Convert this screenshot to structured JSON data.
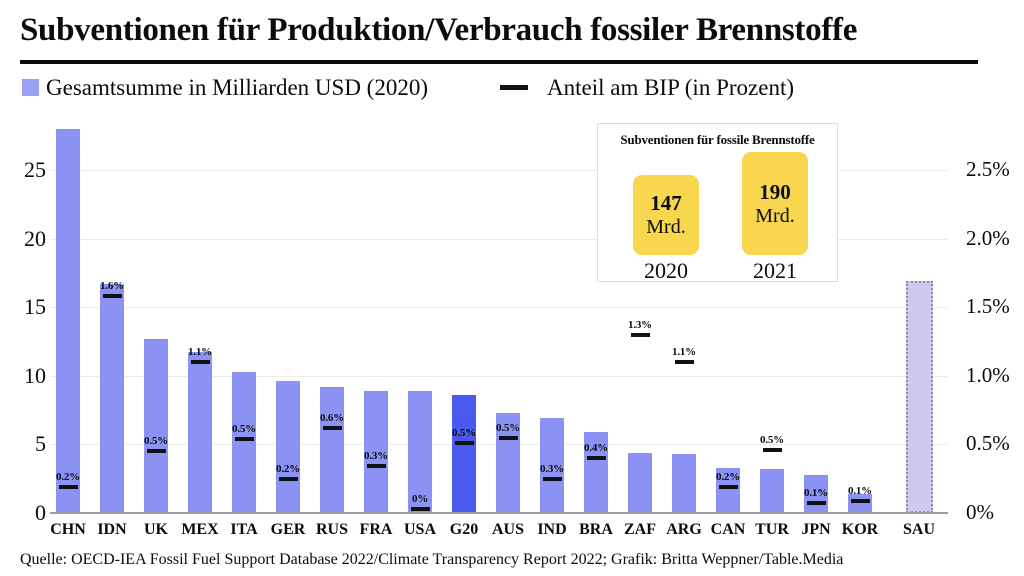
{
  "header": {
    "title": "Subventionen für Produktion/Verbrauch fossiler Brennstoffe"
  },
  "legend": {
    "total": {
      "label": "Gesamtsumme in Milliarden USD (2020)",
      "swatch": "blue-square"
    },
    "share": {
      "label": "Anteil am BIP (in Prozent)",
      "swatch": "black-dash"
    }
  },
  "inset": {
    "title": "Subventionen für fossile Brennstoffe",
    "bars": [
      {
        "amount": "147",
        "unit": "Mrd.",
        "year": "2020",
        "value": 147
      },
      {
        "amount": "190",
        "unit": "Mrd.",
        "year": "2021",
        "value": 190
      }
    ]
  },
  "source": "Quelle: OECD-IEA Fossil Fuel Support Database 2022/Climate Transparency Report 2022; Grafik: Britta Weppner/Table.Media",
  "colors": {
    "bar": "#8B92F4",
    "bar_highlight": "#4A5AF0",
    "bar_outline_fill": "#CFC8F0",
    "bar_outline_border": "#8F8CA0",
    "legend_swatch": "#9BA0F7",
    "inset_bar": "#F8D64E",
    "marker": "#111111",
    "grid": "#EBEBEB",
    "axis_line": "#9C9C9C"
  },
  "chart_data": {
    "type": "bar",
    "title": "Subventionen für Produktion/Verbrauch fossiler Brennstoffe",
    "categories": [
      "CHN",
      "IDN",
      "UK",
      "MEX",
      "ITA",
      "GER",
      "RUS",
      "FRA",
      "USA",
      "G20",
      "AUS",
      "IND",
      "BRA",
      "ZAF",
      "ARG",
      "CAN",
      "TUR",
      "JPN",
      "KOR",
      "SAU"
    ],
    "series": [
      {
        "name": "Gesamtsumme in Milliarden USD (2020)",
        "unit": "Mrd. USD",
        "values": [
          28.0,
          16.7,
          12.7,
          11.7,
          10.3,
          9.6,
          9.2,
          8.9,
          8.9,
          8.6,
          7.3,
          6.9,
          5.9,
          4.4,
          4.3,
          3.3,
          3.2,
          2.8,
          1.4,
          16.9
        ]
      },
      {
        "name": "Anteil am BIP (in Prozent)",
        "unit": "%",
        "values": [
          0.2,
          1.6,
          0.5,
          1.1,
          0.5,
          0.2,
          0.6,
          0.3,
          0,
          0.5,
          0.5,
          0.3,
          0.4,
          1.3,
          1.1,
          0.2,
          0.5,
          0.1,
          0.1,
          null
        ],
        "labels": [
          "0.2%",
          "1.6%",
          "0.5%",
          "1.1%",
          "0.5%",
          "0.2%",
          "0.6%",
          "0.3%",
          "0%",
          "0.5%",
          "0.5%",
          "0.3%",
          "0.4%",
          "1.3%",
          "1.1%",
          "0.2%",
          "0.5%",
          "0.1%",
          "0.1%",
          null
        ]
      }
    ],
    "marker_positions": [
      0.19,
      1.58,
      0.45,
      1.1,
      0.54,
      0.25,
      0.62,
      0.34,
      0.03,
      0.51,
      0.55,
      0.25,
      0.4,
      1.3,
      1.1,
      0.19,
      0.46,
      0.07,
      0.09,
      null
    ],
    "left_axis": {
      "ticks": [
        0,
        5,
        10,
        15,
        20,
        25
      ],
      "max": 29
    },
    "right_axis": {
      "ticks": [
        {
          "v": 0,
          "label": "0%"
        },
        {
          "v": 0.5,
          "label": "0.5%"
        },
        {
          "v": 1,
          "label": "1.0%"
        },
        {
          "v": 1.5,
          "label": "1.5%"
        },
        {
          "v": 2,
          "label": "2.0%"
        },
        {
          "v": 2.5,
          "label": "2.5%"
        }
      ],
      "max": 2.9
    },
    "grid": true,
    "legend_position": "top",
    "highlight_category": "G20",
    "dashed_category": "SAU"
  }
}
